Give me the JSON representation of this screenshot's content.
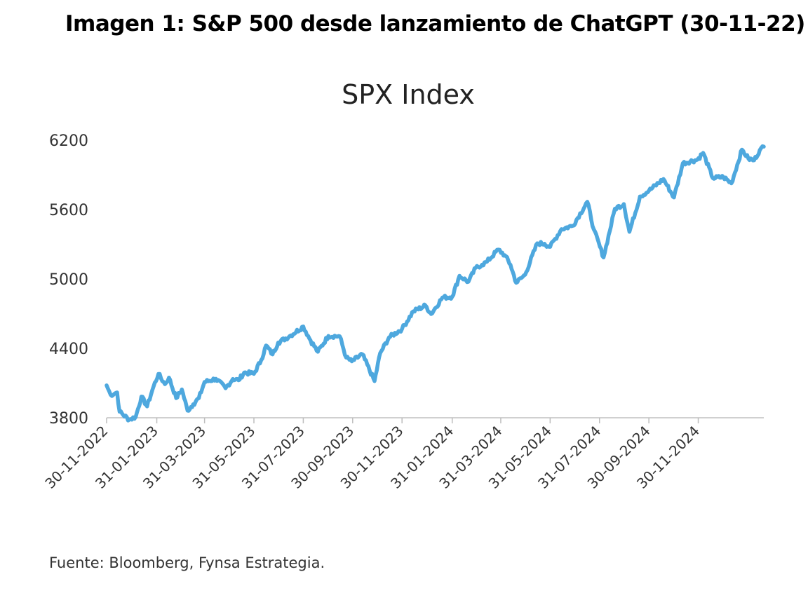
{
  "figure_title": "Imagen 1: S&P 500 desde lanzamiento de ChatGPT (30-11-22)",
  "source_note": "Fuente: Bloomberg, Fynsa Estrategia.",
  "chart_data": {
    "type": "line",
    "title": "SPX Index",
    "xlabel": "",
    "ylabel": "",
    "ylim": [
      3800,
      6200
    ],
    "yticks": [
      3800,
      4400,
      5000,
      5600,
      6200
    ],
    "xticks": [
      "30-11-2022",
      "31-01-2023",
      "31-03-2023",
      "31-05-2023",
      "31-07-2023",
      "30-09-2023",
      "30-11-2023",
      "31-01-2024",
      "31-03-2024",
      "31-05-2024",
      "31-07-2024",
      "30-09-2024",
      "30-11-2024"
    ],
    "grid": false,
    "legend": "none",
    "line_color": "#4EA8DE",
    "series": [
      {
        "points": [
          [
            "2022-11-30",
            4080
          ],
          [
            "2022-12-05",
            3998
          ],
          [
            "2022-12-13",
            4019
          ],
          [
            "2022-12-16",
            3852
          ],
          [
            "2022-12-28",
            3783
          ],
          [
            "2023-01-05",
            3808
          ],
          [
            "2023-01-12",
            3983
          ],
          [
            "2023-01-19",
            3898
          ],
          [
            "2023-01-27",
            4070
          ],
          [
            "2023-02-02",
            4179
          ],
          [
            "2023-02-10",
            4090
          ],
          [
            "2023-02-15",
            4147
          ],
          [
            "2023-02-24",
            3970
          ],
          [
            "2023-03-03",
            4045
          ],
          [
            "2023-03-10",
            3862
          ],
          [
            "2023-03-17",
            3917
          ],
          [
            "2023-03-24",
            3970
          ],
          [
            "2023-03-31",
            4109
          ],
          [
            "2023-04-14",
            4137
          ],
          [
            "2023-04-26",
            4055
          ],
          [
            "2023-05-05",
            4136
          ],
          [
            "2023-05-12",
            4124
          ],
          [
            "2023-05-19",
            4191
          ],
          [
            "2023-05-31",
            4180
          ],
          [
            "2023-06-09",
            4298
          ],
          [
            "2023-06-15",
            4425
          ],
          [
            "2023-06-23",
            4348
          ],
          [
            "2023-06-30",
            4450
          ],
          [
            "2023-07-14",
            4505
          ],
          [
            "2023-07-31",
            4589
          ],
          [
            "2023-08-09",
            4468
          ],
          [
            "2023-08-18",
            4370
          ],
          [
            "2023-08-31",
            4508
          ],
          [
            "2023-09-14",
            4505
          ],
          [
            "2023-09-22",
            4320
          ],
          [
            "2023-09-29",
            4288
          ],
          [
            "2023-10-12",
            4349
          ],
          [
            "2023-10-27",
            4117
          ],
          [
            "2023-11-03",
            4358
          ],
          [
            "2023-11-14",
            4495
          ],
          [
            "2023-11-30",
            4568
          ],
          [
            "2023-12-14",
            4720
          ],
          [
            "2023-12-29",
            4770
          ],
          [
            "2024-01-05",
            4697
          ],
          [
            "2024-01-19",
            4840
          ],
          [
            "2024-01-31",
            4846
          ],
          [
            "2024-02-09",
            5027
          ],
          [
            "2024-02-20",
            4975
          ],
          [
            "2024-02-29",
            5096
          ],
          [
            "2024-03-08",
            5124
          ],
          [
            "2024-03-14",
            5150
          ],
          [
            "2024-03-28",
            5254
          ],
          [
            "2024-04-05",
            5205
          ],
          [
            "2024-04-12",
            5123
          ],
          [
            "2024-04-19",
            4967
          ],
          [
            "2024-04-30",
            5036
          ],
          [
            "2024-05-15",
            5308
          ],
          [
            "2024-05-24",
            5305
          ],
          [
            "2024-05-31",
            5278
          ],
          [
            "2024-06-14",
            5431
          ],
          [
            "2024-06-28",
            5460
          ],
          [
            "2024-07-16",
            5667
          ],
          [
            "2024-07-24",
            5427
          ],
          [
            "2024-08-05",
            5186
          ],
          [
            "2024-08-19",
            5608
          ],
          [
            "2024-08-30",
            5648
          ],
          [
            "2024-09-06",
            5408
          ],
          [
            "2024-09-19",
            5713
          ],
          [
            "2024-09-30",
            5762
          ],
          [
            "2024-10-18",
            5864
          ],
          [
            "2024-10-31",
            5705
          ],
          [
            "2024-11-11",
            6001
          ],
          [
            "2024-11-29",
            6032
          ],
          [
            "2024-12-06",
            6090
          ],
          [
            "2024-12-18",
            5872
          ],
          [
            "2024-12-31",
            5882
          ],
          [
            "2025-01-10",
            5827
          ],
          [
            "2025-01-23",
            6118
          ],
          [
            "2025-01-31",
            6040
          ],
          [
            "2025-02-07",
            6026
          ],
          [
            "2025-02-14",
            6114
          ],
          [
            "2025-02-19",
            6144
          ]
        ]
      }
    ]
  }
}
